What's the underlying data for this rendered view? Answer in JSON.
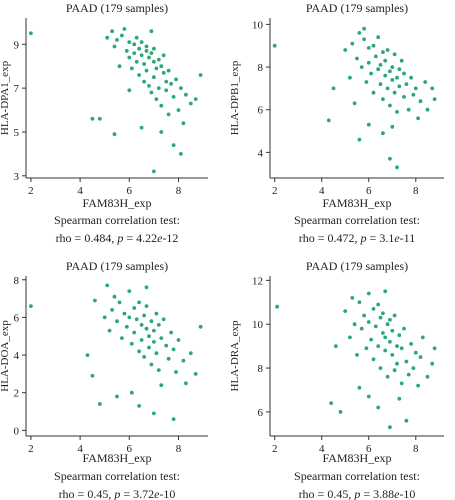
{
  "chart_data": [
    {
      "type": "scatter",
      "title": "PAAD (179 samples)",
      "xlabel": "FAM83H_exp",
      "ylabel": "HLA-DPA1_exp",
      "test_label": "Spearman correlation test:",
      "stats_prefix": "rho = 0.484, ",
      "p_symbol": "p",
      "p_eq": " = 4.22",
      "p_e": "e",
      "p_exp": "-12",
      "xlim": [
        1.8,
        9.2
      ],
      "ylim": [
        2.9,
        10.2
      ],
      "xticks": [
        2,
        4,
        6,
        8
      ],
      "xtick_labels": [
        "2",
        "4",
        "6",
        "8"
      ],
      "yticks": [
        3,
        5,
        7,
        9
      ],
      "ytick_labels": [
        "3",
        "5",
        "7",
        "9"
      ],
      "marker_color": "#2aa876",
      "points": [
        [
          2.0,
          9.5
        ],
        [
          4.5,
          5.6
        ],
        [
          4.8,
          5.6
        ],
        [
          5.1,
          9.3
        ],
        [
          5.3,
          9.6
        ],
        [
          5.4,
          8.9
        ],
        [
          5.5,
          9.2
        ],
        [
          5.6,
          8.0
        ],
        [
          5.7,
          9.4
        ],
        [
          5.8,
          9.7
        ],
        [
          5.9,
          8.7
        ],
        [
          6.0,
          9.1
        ],
        [
          6.0,
          8.4
        ],
        [
          6.1,
          7.9
        ],
        [
          6.2,
          9.0
        ],
        [
          6.2,
          8.6
        ],
        [
          6.3,
          8.2
        ],
        [
          6.3,
          9.3
        ],
        [
          6.4,
          8.8
        ],
        [
          6.4,
          7.6
        ],
        [
          6.5,
          8.5
        ],
        [
          6.5,
          9.1
        ],
        [
          6.6,
          8.1
        ],
        [
          6.6,
          7.3
        ],
        [
          6.7,
          8.7
        ],
        [
          6.7,
          8.9
        ],
        [
          6.7,
          7.8
        ],
        [
          6.8,
          8.4
        ],
        [
          6.8,
          7.1
        ],
        [
          6.9,
          8.6
        ],
        [
          6.9,
          6.8
        ],
        [
          7.0,
          8.2
        ],
        [
          7.0,
          7.5
        ],
        [
          7.0,
          8.8
        ],
        [
          7.1,
          7.9
        ],
        [
          7.1,
          6.5
        ],
        [
          7.2,
          8.3
        ],
        [
          7.2,
          7.0
        ],
        [
          7.3,
          8.0
        ],
        [
          7.3,
          6.2
        ],
        [
          7.4,
          7.7
        ],
        [
          7.4,
          8.5
        ],
        [
          7.5,
          7.3
        ],
        [
          7.5,
          6.9
        ],
        [
          7.6,
          7.8
        ],
        [
          7.6,
          5.8
        ],
        [
          7.7,
          7.2
        ],
        [
          7.8,
          6.6
        ],
        [
          7.9,
          7.4
        ],
        [
          8.0,
          6.0
        ],
        [
          8.1,
          7.0
        ],
        [
          8.2,
          5.4
        ],
        [
          8.3,
          6.7
        ],
        [
          8.5,
          6.3
        ],
        [
          8.7,
          6.5
        ],
        [
          8.9,
          7.6
        ],
        [
          6.0,
          6.9
        ],
        [
          5.4,
          4.9
        ],
        [
          6.5,
          5.2
        ],
        [
          7.0,
          3.2
        ],
        [
          7.3,
          5.0
        ],
        [
          7.8,
          4.4
        ],
        [
          8.1,
          4.0
        ],
        [
          6.9,
          9.6
        ]
      ]
    },
    {
      "type": "scatter",
      "title": "PAAD (179 samples)",
      "xlabel": "FAM83H_exp",
      "ylabel": "HLA-DPB1_exp",
      "test_label": "Spearman correlation test:",
      "stats_prefix": "rho = 0.472, ",
      "p_symbol": "p",
      "p_eq": " = 3.1",
      "p_e": "e",
      "p_exp": "-11",
      "xlim": [
        1.8,
        9.2
      ],
      "ylim": [
        2.8,
        10.3
      ],
      "xticks": [
        2,
        4,
        6,
        8
      ],
      "xtick_labels": [
        "2",
        "4",
        "6",
        "8"
      ],
      "yticks": [
        4,
        6,
        8,
        10
      ],
      "ytick_labels": [
        "4",
        "6",
        "8",
        "10"
      ],
      "marker_color": "#2aa876",
      "points": [
        [
          2.0,
          9.0
        ],
        [
          4.3,
          5.5
        ],
        [
          4.5,
          7.0
        ],
        [
          5.0,
          8.8
        ],
        [
          5.2,
          7.5
        ],
        [
          5.3,
          9.1
        ],
        [
          5.5,
          8.4
        ],
        [
          5.6,
          9.6
        ],
        [
          5.7,
          8.0
        ],
        [
          5.8,
          9.3
        ],
        [
          5.9,
          7.3
        ],
        [
          6.0,
          8.9
        ],
        [
          6.0,
          8.2
        ],
        [
          6.1,
          7.7
        ],
        [
          6.2,
          9.0
        ],
        [
          6.2,
          6.8
        ],
        [
          6.3,
          8.5
        ],
        [
          6.4,
          7.9
        ],
        [
          6.4,
          9.4
        ],
        [
          6.5,
          7.2
        ],
        [
          6.5,
          8.1
        ],
        [
          6.6,
          8.7
        ],
        [
          6.6,
          6.5
        ],
        [
          6.7,
          7.6
        ],
        [
          6.7,
          8.3
        ],
        [
          6.8,
          7.0
        ],
        [
          6.8,
          8.8
        ],
        [
          6.9,
          7.8
        ],
        [
          6.9,
          6.2
        ],
        [
          7.0,
          8.0
        ],
        [
          7.0,
          7.4
        ],
        [
          7.1,
          8.6
        ],
        [
          7.1,
          6.8
        ],
        [
          7.2,
          7.5
        ],
        [
          7.2,
          5.9
        ],
        [
          7.3,
          7.9
        ],
        [
          7.3,
          7.1
        ],
        [
          7.4,
          8.3
        ],
        [
          7.5,
          6.6
        ],
        [
          7.5,
          7.7
        ],
        [
          7.6,
          7.2
        ],
        [
          7.7,
          6.0
        ],
        [
          7.8,
          7.5
        ],
        [
          7.9,
          6.7
        ],
        [
          8.0,
          7.0
        ],
        [
          8.1,
          5.6
        ],
        [
          8.2,
          6.4
        ],
        [
          8.4,
          7.3
        ],
        [
          8.5,
          6.0
        ],
        [
          8.7,
          7.0
        ],
        [
          5.6,
          4.6
        ],
        [
          6.0,
          5.3
        ],
        [
          6.6,
          4.9
        ],
        [
          6.9,
          3.7
        ],
        [
          7.2,
          3.3
        ],
        [
          7.0,
          5.2
        ],
        [
          5.8,
          9.8
        ],
        [
          5.4,
          6.3
        ],
        [
          8.8,
          6.5
        ]
      ]
    },
    {
      "type": "scatter",
      "title": "PAAD (179 samples)",
      "xlabel": "FAM83H_exp",
      "ylabel": "HLA-DOA_exp",
      "test_label": "Spearman correlation test:",
      "stats_prefix": "rho = 0.45, ",
      "p_symbol": "p",
      "p_eq": " = 3.72",
      "p_e": "e",
      "p_exp": "-10",
      "xlim": [
        1.8,
        9.2
      ],
      "ylim": [
        -0.3,
        8.2
      ],
      "xticks": [
        2,
        4,
        6,
        8
      ],
      "xtick_labels": [
        "2",
        "4",
        "6",
        "8"
      ],
      "yticks": [
        0,
        2,
        4,
        6,
        8
      ],
      "ytick_labels": [
        "0",
        "2",
        "4",
        "6",
        "8"
      ],
      "marker_color": "#2aa876",
      "points": [
        [
          2.0,
          6.6
        ],
        [
          4.3,
          4.0
        ],
        [
          4.5,
          2.9
        ],
        [
          4.6,
          6.9
        ],
        [
          4.8,
          1.4
        ],
        [
          5.0,
          6.0
        ],
        [
          5.1,
          7.7
        ],
        [
          5.2,
          5.3
        ],
        [
          5.3,
          6.4
        ],
        [
          5.4,
          7.1
        ],
        [
          5.5,
          5.8
        ],
        [
          5.6,
          6.8
        ],
        [
          5.7,
          4.9
        ],
        [
          5.8,
          6.2
        ],
        [
          5.9,
          5.5
        ],
        [
          6.0,
          7.4
        ],
        [
          6.0,
          6.0
        ],
        [
          6.1,
          4.6
        ],
        [
          6.2,
          6.5
        ],
        [
          6.2,
          5.2
        ],
        [
          6.3,
          5.9
        ],
        [
          6.4,
          4.2
        ],
        [
          6.4,
          6.8
        ],
        [
          6.5,
          5.6
        ],
        [
          6.5,
          4.8
        ],
        [
          6.6,
          6.1
        ],
        [
          6.6,
          3.9
        ],
        [
          6.7,
          5.4
        ],
        [
          6.7,
          6.6
        ],
        [
          6.8,
          5.0
        ],
        [
          6.8,
          4.4
        ],
        [
          6.9,
          5.8
        ],
        [
          6.9,
          3.5
        ],
        [
          7.0,
          5.3
        ],
        [
          7.0,
          4.7
        ],
        [
          7.1,
          6.2
        ],
        [
          7.1,
          4.1
        ],
        [
          7.2,
          5.6
        ],
        [
          7.2,
          3.2
        ],
        [
          7.3,
          4.9
        ],
        [
          7.4,
          5.9
        ],
        [
          7.5,
          4.5
        ],
        [
          7.6,
          3.8
        ],
        [
          7.7,
          5.2
        ],
        [
          7.8,
          4.3
        ],
        [
          7.9,
          3.1
        ],
        [
          8.0,
          4.8
        ],
        [
          8.2,
          3.7
        ],
        [
          8.3,
          2.5
        ],
        [
          8.5,
          4.1
        ],
        [
          8.7,
          3.0
        ],
        [
          8.9,
          5.5
        ],
        [
          6.1,
          2.0
        ],
        [
          6.4,
          1.3
        ],
        [
          7.3,
          2.4
        ],
        [
          7.0,
          0.9
        ],
        [
          7.8,
          0.6
        ],
        [
          6.7,
          7.6
        ],
        [
          5.5,
          1.8
        ]
      ]
    },
    {
      "type": "scatter",
      "title": "PAAD (179 samples)",
      "xlabel": "FAM83H_exp",
      "ylabel": "HLA-DRA_exp",
      "test_label": "Spearman correlation test:",
      "stats_prefix": "rho = 0.45, ",
      "p_symbol": "p",
      "p_eq": " = 3.88",
      "p_e": "e",
      "p_exp": "-10",
      "xlim": [
        1.8,
        9.2
      ],
      "ylim": [
        4.9,
        12.2
      ],
      "xticks": [
        2,
        4,
        6,
        8
      ],
      "xtick_labels": [
        "2",
        "4",
        "6",
        "8"
      ],
      "yticks": [
        6,
        8,
        10,
        12
      ],
      "ytick_labels": [
        "6",
        "8",
        "10",
        "12"
      ],
      "marker_color": "#2aa876",
      "points": [
        [
          2.1,
          10.8
        ],
        [
          4.4,
          6.4
        ],
        [
          4.6,
          9.0
        ],
        [
          4.8,
          6.0
        ],
        [
          5.0,
          10.6
        ],
        [
          5.2,
          9.4
        ],
        [
          5.3,
          11.2
        ],
        [
          5.4,
          10.0
        ],
        [
          5.5,
          8.6
        ],
        [
          5.6,
          11.0
        ],
        [
          5.7,
          9.8
        ],
        [
          5.8,
          10.4
        ],
        [
          5.9,
          8.9
        ],
        [
          6.0,
          11.4
        ],
        [
          6.0,
          10.1
        ],
        [
          6.1,
          9.3
        ],
        [
          6.2,
          10.7
        ],
        [
          6.2,
          8.4
        ],
        [
          6.3,
          9.9
        ],
        [
          6.4,
          10.9
        ],
        [
          6.4,
          9.0
        ],
        [
          6.5,
          10.3
        ],
        [
          6.5,
          8.0
        ],
        [
          6.6,
          9.6
        ],
        [
          6.6,
          10.5
        ],
        [
          6.7,
          8.8
        ],
        [
          6.7,
          9.4
        ],
        [
          6.8,
          10.0
        ],
        [
          6.8,
          7.6
        ],
        [
          6.9,
          9.2
        ],
        [
          6.9,
          10.2
        ],
        [
          7.0,
          8.6
        ],
        [
          7.0,
          9.7
        ],
        [
          7.1,
          7.9
        ],
        [
          7.1,
          10.4
        ],
        [
          7.2,
          9.0
        ],
        [
          7.2,
          8.2
        ],
        [
          7.3,
          9.5
        ],
        [
          7.4,
          7.3
        ],
        [
          7.4,
          8.9
        ],
        [
          7.5,
          9.8
        ],
        [
          7.6,
          8.3
        ],
        [
          7.7,
          7.7
        ],
        [
          7.8,
          9.1
        ],
        [
          7.9,
          8.0
        ],
        [
          8.0,
          8.7
        ],
        [
          8.1,
          7.2
        ],
        [
          8.2,
          8.5
        ],
        [
          8.3,
          9.4
        ],
        [
          8.5,
          7.6
        ],
        [
          8.7,
          8.2
        ],
        [
          6.0,
          6.7
        ],
        [
          6.4,
          6.2
        ],
        [
          6.9,
          5.3
        ],
        [
          7.3,
          6.6
        ],
        [
          7.6,
          5.6
        ],
        [
          5.6,
          7.1
        ],
        [
          8.8,
          8.9
        ],
        [
          6.7,
          11.5
        ]
      ]
    }
  ]
}
